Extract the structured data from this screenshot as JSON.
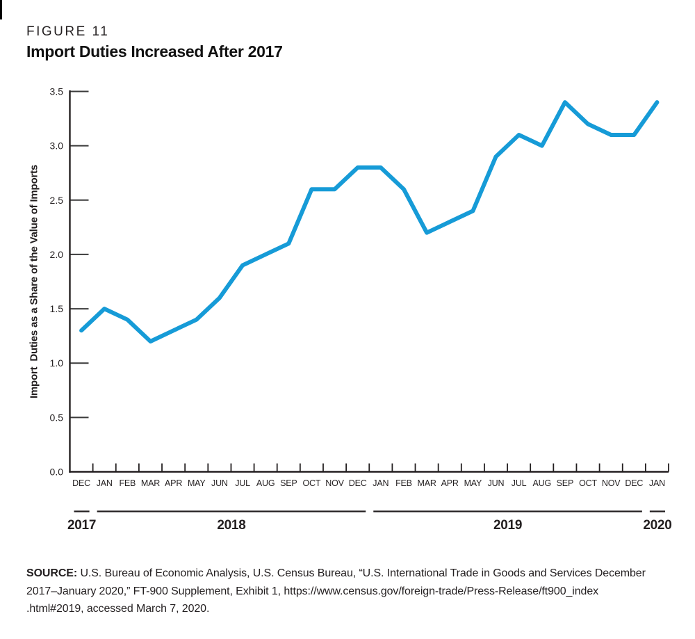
{
  "page": {
    "figure_label": "FIGURE 11",
    "title": "Import Duties Increased After 2017"
  },
  "chart_data": {
    "type": "line",
    "title": "Import Duties Increased After 2017",
    "ylabel": "Import  Duties as a Share of the Value of Imports",
    "xlabel": "",
    "ylim": [
      0,
      3.5
    ],
    "ytick_labels": [
      "0.0",
      "0.5",
      "1.0",
      "1.5",
      "2.0",
      "2.5",
      "3.0",
      "3.5"
    ],
    "categories": [
      "DEC",
      "JAN",
      "FEB",
      "MAR",
      "APR",
      "MAY",
      "JUN",
      "JUL",
      "AUG",
      "SEP",
      "OCT",
      "NOV",
      "DEC",
      "JAN",
      "FEB",
      "MAR",
      "APR",
      "MAY",
      "JUN",
      "JUL",
      "AUG",
      "SEP",
      "OCT",
      "NOV",
      "DEC",
      "JAN"
    ],
    "values": [
      1.3,
      1.5,
      1.4,
      1.2,
      1.3,
      1.4,
      1.6,
      1.9,
      2.0,
      2.1,
      2.6,
      2.6,
      2.8,
      2.8,
      2.6,
      2.2,
      2.3,
      2.4,
      2.9,
      3.1,
      3.0,
      3.4,
      3.2,
      3.1,
      3.1,
      3.4
    ],
    "year_groups": [
      {
        "label": "2017",
        "start": 0,
        "end": 0
      },
      {
        "label": "2018",
        "start": 1,
        "end": 12
      },
      {
        "label": "2019",
        "start": 13,
        "end": 24
      },
      {
        "label": "2020",
        "start": 25,
        "end": 25
      }
    ],
    "grid": false,
    "legend": "none",
    "line_color": "#169BD7",
    "axis_color": "#231F20",
    "tick_color": "#3A3A3A"
  },
  "source": {
    "label": "SOURCE:",
    "line1": " U.S. Bureau of Economic Analysis, U.S. Census Bureau, “U.S. International Trade in Goods and Services December",
    "line2": "2017–January 2020,” FT-900 Supplement, Exhibit 1, https://www.census.gov/foreign-trade/Press-Release/ft900_index",
    "line3": ".html#2019, accessed March 7, 2020."
  }
}
